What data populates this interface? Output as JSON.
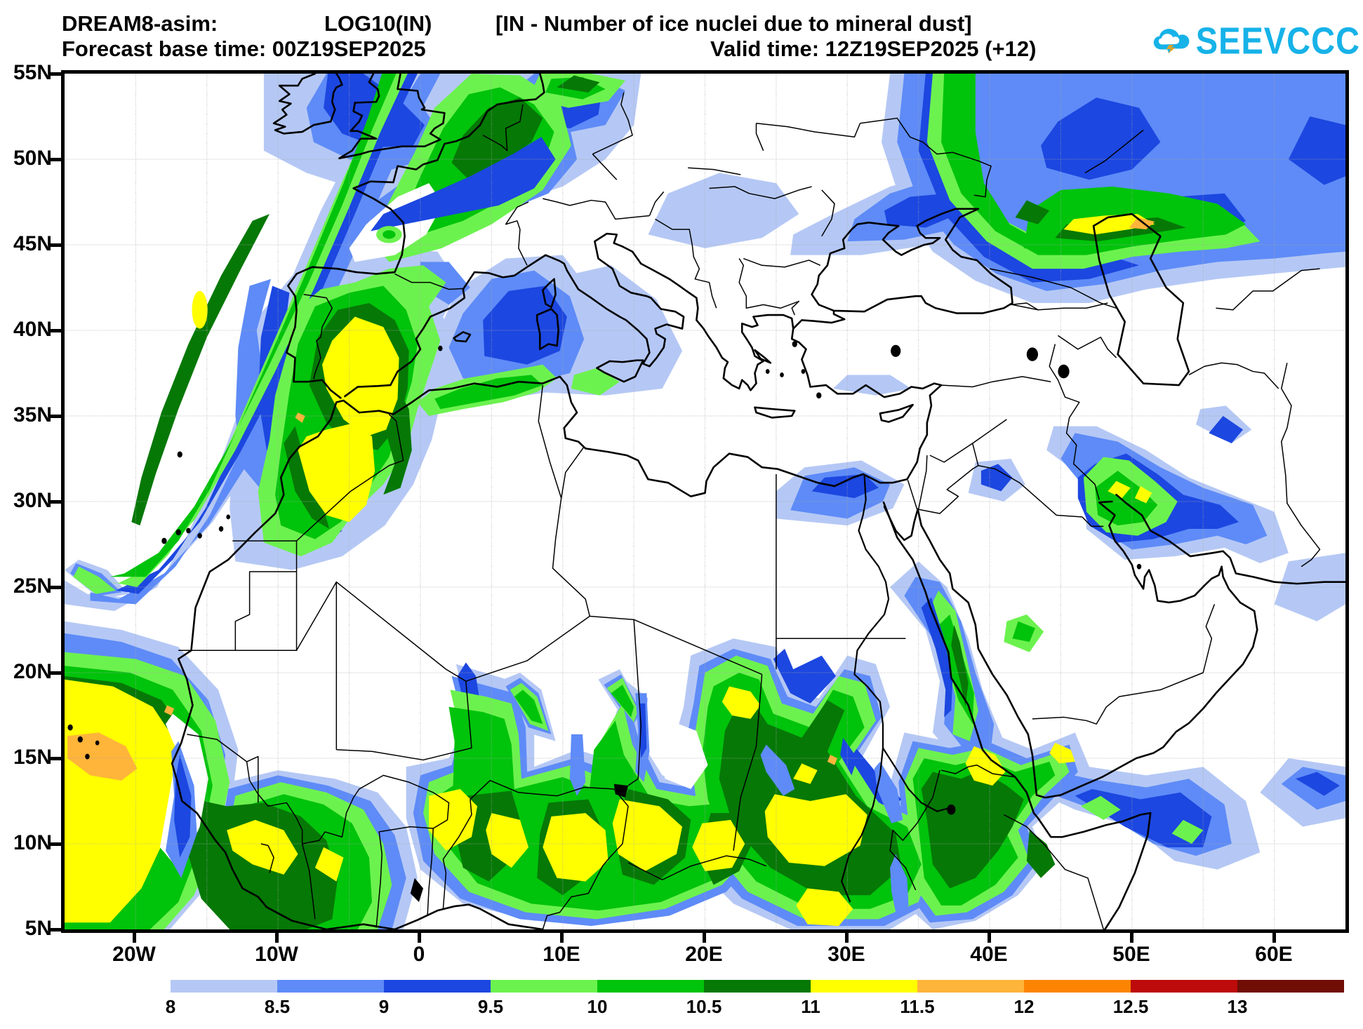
{
  "header": {
    "model": "DREAM8-asim:",
    "variable": "LOG10(IN)",
    "description": "[IN - Number of ice nuclei due to mineral dust]",
    "forecast_base": "Forecast base time: 00Z19SEP2025",
    "valid_time": "Valid time: 12Z19SEP2025 (+12)"
  },
  "logo": {
    "text": "SEEVCCC",
    "cloud_color": "#16b2e8",
    "bolt_color": "#dda32b",
    "text_color": "#16b2e8"
  },
  "axes": {
    "y_labels": [
      "55N",
      "50N",
      "45N",
      "40N",
      "35N",
      "30N",
      "25N",
      "20N",
      "15N",
      "10N",
      "5N"
    ],
    "x_labels": [
      "20W",
      "10W",
      "0",
      "10E",
      "20E",
      "30E",
      "40E",
      "50E",
      "60E"
    ]
  },
  "legend": {
    "values": [
      "8",
      "8.5",
      "9",
      "9.5",
      "10",
      "10.5",
      "11",
      "11.5",
      "12",
      "12.5",
      "13"
    ],
    "colors": [
      "#b5c8f5",
      "#5e8bf7",
      "#1c47e0",
      "#6cf24e",
      "#00c30b",
      "#067806",
      "#ffff00",
      "#ffb43a",
      "#fb8503",
      "#bd0b0b",
      "#700d05"
    ]
  },
  "chart_data": {
    "type": "heatmap",
    "title": "DREAM8-asim: LOG10(IN) [IN - Number of ice nuclei due to mineral dust]",
    "forecast_base_time": "00Z19SEP2025",
    "valid_time": "12Z19SEP2025 (+12)",
    "map_extent": {
      "lon_min": -25,
      "lon_max": 65,
      "lat_min": 5,
      "lat_max": 55
    },
    "grid_interval_deg": 5,
    "contour_levels": [
      8,
      8.5,
      9,
      9.5,
      10,
      10.5,
      11,
      11.5,
      12,
      12.5,
      13
    ],
    "level_colors": [
      "#b5c8f5",
      "#5e8bf7",
      "#1c47e0",
      "#6cf24e",
      "#00c30b",
      "#067806",
      "#ffff00",
      "#ffb43a",
      "#fb8503",
      "#bd0b0b",
      "#700d05"
    ],
    "legend_position": "bottom",
    "major_features": [
      {
        "region": "NE Atlantic band from 25W/28N to 2W/55N",
        "max_level": 11,
        "note": "green band, dark-green core, small yellow spot near 15.5W 41N"
      },
      {
        "region": "Britain/Ireland & English Channel",
        "max_level": 9.5,
        "note": "blue shading"
      },
      {
        "region": "NW France to Denmark band",
        "max_level": 11,
        "note": "green band with dark core"
      },
      {
        "region": "Iberia & Morocco",
        "max_level": 11.5,
        "note": "large yellow cores over central Spain and Morocco/Atlas"
      },
      {
        "region": "Western Mediterranean 3-11E 38-43N",
        "max_level": 9.5,
        "note": "blue patch"
      },
      {
        "region": "Caucasus/NW Caspian 44-52E 44-48N",
        "max_level": 12,
        "note": "green mass, yellow lens, orange fleck near 50E 46N"
      },
      {
        "region": "Mesopotamia/Kuwait 47-53E 28-32N",
        "max_level": 11,
        "note": "green blob with small yellow flecks, blue tail east"
      },
      {
        "region": "Sahel belt 25W-43E 5-20N",
        "max_level": 12,
        "note": "dark green masses, many yellow cores, orange blob near 22W 15N"
      },
      {
        "region": "Sudan 20-26E 17-19.5N",
        "max_level": 11,
        "note": "green with yellow core"
      },
      {
        "region": "Red Sea African coast 35-40E 15-24N",
        "max_level": 10.5,
        "note": "narrow green band"
      },
      {
        "region": "Ethiopia/Afar 34-46E 5-16N",
        "max_level": 11,
        "note": "greens with yellow at Afar"
      },
      {
        "region": "Somali coast/Arabian Sea 44-65E 8-15N",
        "max_level": 9.5,
        "note": "blue patches"
      }
    ]
  }
}
